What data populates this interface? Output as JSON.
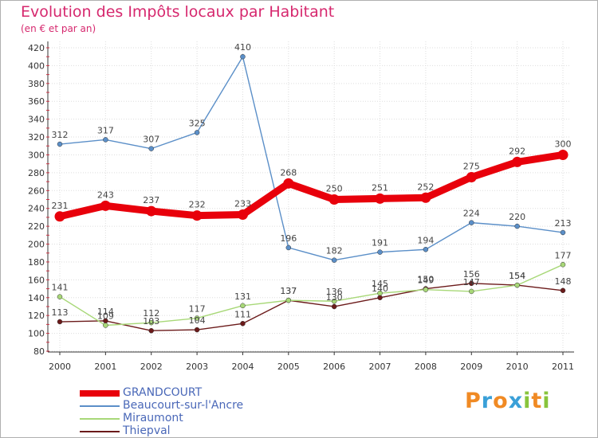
{
  "header": {
    "title": "Evolution des Impôts locaux par Habitant",
    "subtitle": "(en € et par an)"
  },
  "logo": {
    "text": "Proxiti",
    "letters": [
      {
        "char": "P",
        "color": "#f08a24"
      },
      {
        "char": "r",
        "color": "#3aa0d8"
      },
      {
        "char": "o",
        "color": "#f08a24"
      },
      {
        "char": "x",
        "color": "#3aa0d8"
      },
      {
        "char": "i",
        "color": "#88c43c"
      },
      {
        "char": "t",
        "color": "#f08a24"
      },
      {
        "char": "i",
        "color": "#88c43c"
      }
    ]
  },
  "colors": {
    "title": "#d6286e",
    "axis": "#333333",
    "grid": "#dddddd",
    "legend_text": "#4a68b8"
  },
  "chart_data": {
    "type": "line",
    "title": "Evolution des Impôts locaux par Habitant",
    "subtitle": "(en € et par an)",
    "xlabel": "",
    "ylabel": "",
    "x": [
      "2000",
      "2001",
      "2002",
      "2003",
      "2004",
      "2005",
      "2006",
      "2007",
      "2008",
      "2009",
      "2010",
      "2011"
    ],
    "ylim": [
      80,
      420
    ],
    "yticks": [
      80,
      100,
      120,
      140,
      160,
      180,
      200,
      220,
      240,
      260,
      280,
      300,
      320,
      340,
      360,
      380,
      400,
      420
    ],
    "grid": true,
    "legend_position": "bottom-left",
    "series": [
      {
        "name": "GRANDCOURT",
        "color": "#e8000b",
        "values": [
          231,
          243,
          237,
          232,
          233,
          268,
          250,
          251,
          252,
          275,
          292,
          300
        ]
      },
      {
        "name": "Beaucourt-sur-l'Ancre",
        "color": "#5b8fc8",
        "values": [
          312,
          317,
          307,
          325,
          410,
          196,
          182,
          191,
          194,
          224,
          220,
          213
        ]
      },
      {
        "name": "Miraumont",
        "color": "#a8d878",
        "values": [
          141,
          109,
          112,
          117,
          131,
          137,
          136,
          145,
          149,
          147,
          154,
          177
        ]
      },
      {
        "name": "Thiepval",
        "color": "#6b1a1a",
        "values": [
          113,
          114,
          103,
          104,
          111,
          137,
          130,
          140,
          150,
          156,
          154,
          148
        ]
      }
    ]
  }
}
